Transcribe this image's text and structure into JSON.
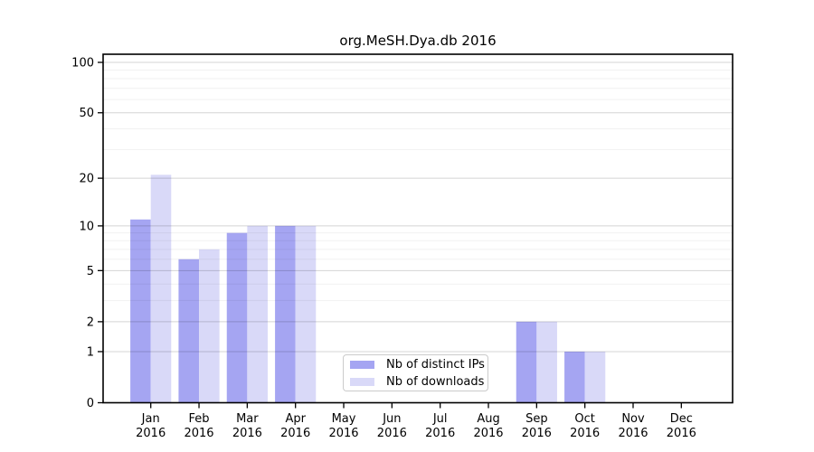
{
  "chart_data": {
    "type": "bar",
    "title": "org.MeSH.Dya.db 2016",
    "categories": [
      "Jan",
      "Feb",
      "Mar",
      "Apr",
      "May",
      "Jun",
      "Jul",
      "Aug",
      "Sep",
      "Oct",
      "Nov",
      "Dec"
    ],
    "category_year": "2016",
    "series": [
      {
        "name": "Nb of distinct IPs",
        "color": "#a5a5f2",
        "values": [
          11,
          6,
          9,
          10,
          0,
          0,
          0,
          0,
          2,
          1,
          0,
          0
        ]
      },
      {
        "name": "Nb of downloads",
        "color": "#d9d9f8",
        "values": [
          21,
          7,
          10,
          10,
          0,
          0,
          0,
          0,
          2,
          1,
          0,
          0
        ]
      }
    ],
    "y_axis": {
      "scale": "log1p",
      "ticks": [
        0,
        1,
        2,
        5,
        10,
        20,
        50,
        100
      ],
      "minor_gridlines": [
        3,
        4,
        6,
        7,
        8,
        9,
        30,
        40,
        60,
        70,
        80,
        90
      ],
      "max": 100
    },
    "x_axis_label_lines": 2,
    "grid": true,
    "legend_position": "bottom-center",
    "colors": {
      "frame": "#000000",
      "major_grid": "rgba(0,0,0,0.17)",
      "minor_grid": "rgba(0,0,0,0.055)"
    }
  }
}
